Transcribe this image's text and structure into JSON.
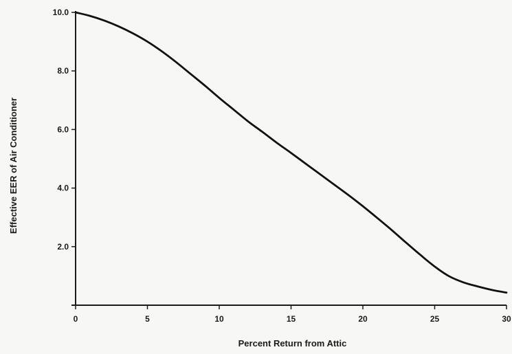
{
  "chart_data": {
    "type": "line",
    "title": "",
    "xlabel": "Percent Return from Attic",
    "ylabel": "Effective EER of Air Conditioner",
    "xlim": [
      0,
      30
    ],
    "ylim": [
      0,
      10
    ],
    "x_ticks": [
      0,
      5,
      10,
      15,
      20,
      25,
      30
    ],
    "x_tick_labels": [
      "0",
      "5",
      "10",
      "15",
      "20",
      "25",
      "30"
    ],
    "y_ticks": [
      2,
      4,
      6,
      8,
      10
    ],
    "y_tick_labels": [
      "2.0",
      "4.0",
      "6.0",
      "8.0",
      "10.0"
    ],
    "grid": false,
    "series": [
      {
        "x": [
          0,
          1,
          2,
          3,
          4,
          5,
          6,
          7,
          8,
          9,
          10,
          11,
          12,
          13,
          14,
          15,
          16,
          17,
          18,
          19,
          20,
          21,
          22,
          23,
          24,
          25,
          26,
          27,
          28,
          29,
          30
        ],
        "y": [
          10.0,
          9.88,
          9.72,
          9.52,
          9.28,
          9.0,
          8.67,
          8.3,
          7.9,
          7.5,
          7.08,
          6.68,
          6.28,
          5.92,
          5.55,
          5.2,
          4.84,
          4.48,
          4.12,
          3.76,
          3.38,
          2.98,
          2.57,
          2.14,
          1.72,
          1.32,
          0.99,
          0.78,
          0.64,
          0.52,
          0.43
        ],
        "color": "#111111"
      }
    ]
  }
}
